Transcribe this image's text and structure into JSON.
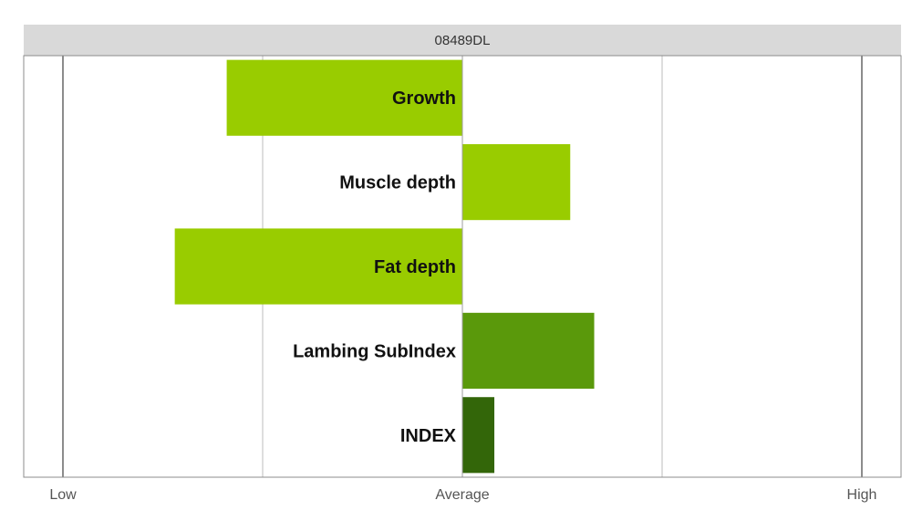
{
  "chart_data": {
    "type": "bar",
    "orientation": "horizontal",
    "panel_title": "08489DL",
    "categories": [
      "Growth",
      "Muscle depth",
      "Fat depth",
      "Lambing SubIndex",
      "INDEX"
    ],
    "values": [
      -0.59,
      0.27,
      -0.72,
      0.33,
      0.08
    ],
    "colors": [
      "#99cc00",
      "#99cc00",
      "#99cc00",
      "#5a990b",
      "#336609"
    ],
    "xlim": [
      -1,
      1
    ],
    "gridlines": [
      -1,
      -0.5,
      0,
      0.5,
      1
    ],
    "x_ticks": [
      {
        "value": -1,
        "label": "Low"
      },
      {
        "value": 0,
        "label": "Average"
      },
      {
        "value": 1,
        "label": "High"
      }
    ],
    "grid": true,
    "legend": "none"
  }
}
